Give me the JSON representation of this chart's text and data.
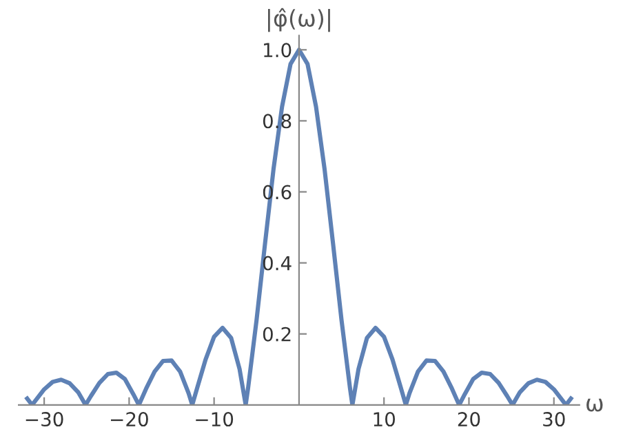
{
  "chart_data": {
    "type": "line",
    "xlabel": "ω",
    "ylabel": "|φ̂(ω)|",
    "x": [
      -32,
      -31.42,
      -31,
      -30,
      -29,
      -28,
      -27,
      -26,
      -25.13,
      -24.5,
      -23.5,
      -22.5,
      -21.5,
      -20.5,
      -19.5,
      -18.85,
      -18,
      -17,
      -16,
      -15,
      -14,
      -13,
      -12.57,
      -12,
      -11,
      -10,
      -9,
      -8,
      -7,
      -6.28,
      -6,
      -5,
      -4,
      -3,
      -2,
      -1,
      0,
      1,
      2,
      3,
      4,
      5,
      6,
      6.28,
      7,
      8,
      9,
      10,
      11,
      12,
      12.57,
      13,
      14,
      15,
      16,
      17,
      18,
      18.85,
      19.5,
      20.5,
      21.5,
      22.5,
      23.5,
      24.5,
      25.13,
      26,
      27,
      28,
      29,
      30,
      31,
      31.42,
      32
    ],
    "series": [
      {
        "color": "#5e81b5",
        "values": [
          0.018,
          0,
          0.013,
          0.044,
          0.065,
          0.071,
          0.061,
          0.036,
          0,
          0.025,
          0.062,
          0.087,
          0.091,
          0.073,
          0.03,
          0,
          0.046,
          0.094,
          0.124,
          0.125,
          0.094,
          0.033,
          0,
          0.047,
          0.128,
          0.192,
          0.217,
          0.189,
          0.101,
          0,
          0.047,
          0.239,
          0.455,
          0.665,
          0.84,
          0.96,
          1.0,
          0.96,
          0.84,
          0.665,
          0.455,
          0.239,
          0.047,
          0,
          0.101,
          0.189,
          0.217,
          0.192,
          0.128,
          0.047,
          0,
          0.033,
          0.094,
          0.125,
          0.124,
          0.094,
          0.046,
          0,
          0.03,
          0.073,
          0.091,
          0.087,
          0.062,
          0.025,
          0,
          0.036,
          0.061,
          0.071,
          0.065,
          0.044,
          0.013,
          0,
          0.018
        ]
      }
    ],
    "xlim": [
      -33,
      33
    ],
    "ylim": [
      0,
      1.04
    ],
    "xticks": [
      {
        "value": -30,
        "label": "−30"
      },
      {
        "value": -20,
        "label": "−20"
      },
      {
        "value": -10,
        "label": "−10"
      },
      10,
      20,
      30
    ],
    "yticks": [
      {
        "value": 0.2,
        "label": "0.2"
      },
      {
        "value": 0.4,
        "label": "0.4"
      },
      {
        "value": 0.6,
        "label": "0.6"
      },
      {
        "value": 0.8,
        "label": "0.8"
      },
      {
        "value": 1.0,
        "label": "1.0"
      }
    ],
    "grid": false,
    "legend": false,
    "marker": "none",
    "line_style": "solid"
  }
}
